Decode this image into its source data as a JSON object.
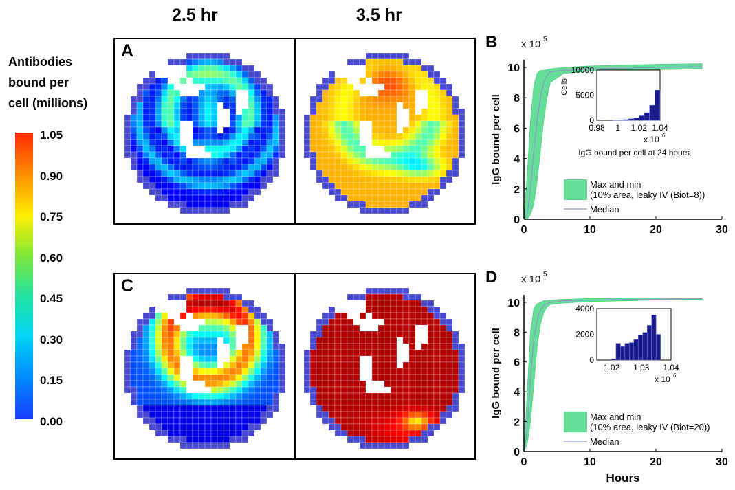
{
  "column_titles": [
    "2.5 hr",
    "3.5 hr"
  ],
  "colorbar": {
    "title": [
      "Antibodies",
      "bound per",
      "cell (millions)"
    ],
    "ticks": [
      "1.05",
      "0.90",
      "0.75",
      "0.60",
      "0.45",
      "0.30",
      "0.15",
      "0.00"
    ]
  },
  "panel_letters": {
    "A": "A",
    "B": "B",
    "C": "C",
    "D": "D"
  },
  "chart_data": [
    {
      "id": "B",
      "type": "area",
      "ylabel": "IgG bound per cell",
      "y_multiplier": "x 10",
      "y_exponent": "5",
      "xlim": [
        0,
        30
      ],
      "ylim": [
        0,
        10.5
      ],
      "xticks": [
        0,
        10,
        20,
        30
      ],
      "yticks": [
        0,
        2,
        4,
        6,
        8,
        10
      ],
      "series": [
        {
          "name": "Max and min",
          "name_line2": "(10% area, leaky IV (Biot=8))",
          "color": "#66dd99",
          "x": [
            0,
            0.5,
            1,
            1.5,
            2,
            2.5,
            3,
            3.5,
            4,
            6,
            10,
            20,
            27
          ],
          "upper": [
            0,
            3.0,
            6.5,
            8.8,
            9.6,
            9.8,
            9.8,
            9.85,
            9.9,
            10.0,
            10.1,
            10.2,
            10.25
          ],
          "lower": [
            0,
            0,
            0.3,
            1.0,
            2.5,
            4.5,
            6.5,
            8.0,
            9.0,
            9.6,
            9.75,
            9.85,
            9.9
          ]
        },
        {
          "name": "Median",
          "color": "#8899cc",
          "x": [
            0,
            0.5,
            1,
            1.5,
            2,
            2.5,
            3,
            3.5,
            4,
            6,
            10,
            20,
            27
          ],
          "y": [
            0,
            0.3,
            2.0,
            4.5,
            6.5,
            8.0,
            9.0,
            9.5,
            9.7,
            9.8,
            9.9,
            10.0,
            10.05
          ]
        }
      ],
      "inset": {
        "type": "bar",
        "ylabel": "Cells",
        "xlabel": "IgG bound per cell at 24 hours",
        "x_multiplier": "x 10",
        "x_exponent": "6",
        "xlim": [
          0.98,
          1.04
        ],
        "ylim": [
          0,
          10000
        ],
        "xticks": [
          "0.98",
          "1",
          "1.02",
          "1.04"
        ],
        "yticks": [
          "0",
          "5000",
          "10000"
        ],
        "bins": [
          0.9925,
          0.9975,
          1.0025,
          1.0075,
          1.0125,
          1.0175,
          1.0225,
          1.0275,
          1.0325,
          1.0375
        ],
        "values": [
          0,
          50,
          80,
          150,
          300,
          500,
          900,
          1500,
          3000,
          6000
        ]
      }
    },
    {
      "id": "D",
      "type": "area",
      "ylabel": "IgG bound per cell",
      "xlabel": "Hours",
      "y_multiplier": "x 10",
      "y_exponent": "5",
      "xlim": [
        0,
        30
      ],
      "ylim": [
        0,
        10.5
      ],
      "xticks": [
        0,
        10,
        20,
        30
      ],
      "yticks": [
        0,
        2,
        4,
        6,
        8,
        10
      ],
      "series": [
        {
          "name": "Max and min",
          "name_line2": "(10% area, leaky IV (Biot=20))",
          "color": "#66dd99",
          "x": [
            0,
            0.5,
            1,
            1.5,
            2,
            2.5,
            3,
            3.5,
            4,
            6,
            10,
            20,
            27
          ],
          "upper": [
            0,
            4.0,
            8.0,
            9.6,
            9.9,
            10.0,
            10.1,
            10.1,
            10.15,
            10.2,
            10.25,
            10.3,
            10.3
          ],
          "lower": [
            0,
            0.5,
            2.0,
            4.5,
            7.0,
            8.5,
            9.3,
            9.7,
            9.85,
            9.95,
            10.05,
            10.15,
            10.2
          ]
        },
        {
          "name": "Median",
          "color": "#8899cc",
          "x": [
            0,
            0.5,
            1,
            1.5,
            2,
            2.5,
            3,
            3.5,
            4,
            6,
            10,
            20,
            27
          ],
          "y": [
            0,
            1.5,
            5.0,
            7.5,
            8.8,
            9.5,
            9.8,
            9.9,
            10.0,
            10.1,
            10.15,
            10.2,
            10.25
          ]
        }
      ],
      "inset": {
        "type": "bar",
        "ylabel": "",
        "xlabel": "",
        "x_multiplier": "x 10",
        "x_exponent": "6",
        "xlim": [
          1.015,
          1.04
        ],
        "ylim": [
          0,
          4000
        ],
        "xticks": [
          "1.02",
          "1.03",
          "1.04"
        ],
        "yticks": [
          "0",
          "2000",
          "4000"
        ],
        "bins": [
          1.0207,
          1.0222,
          1.0237,
          1.0252,
          1.0267,
          1.0282,
          1.0297,
          1.0312,
          1.0327,
          1.0342,
          1.0357
        ],
        "values": [
          100,
          1300,
          1050,
          1300,
          1350,
          1600,
          1950,
          2150,
          2700,
          3500,
          2000
        ]
      }
    }
  ]
}
